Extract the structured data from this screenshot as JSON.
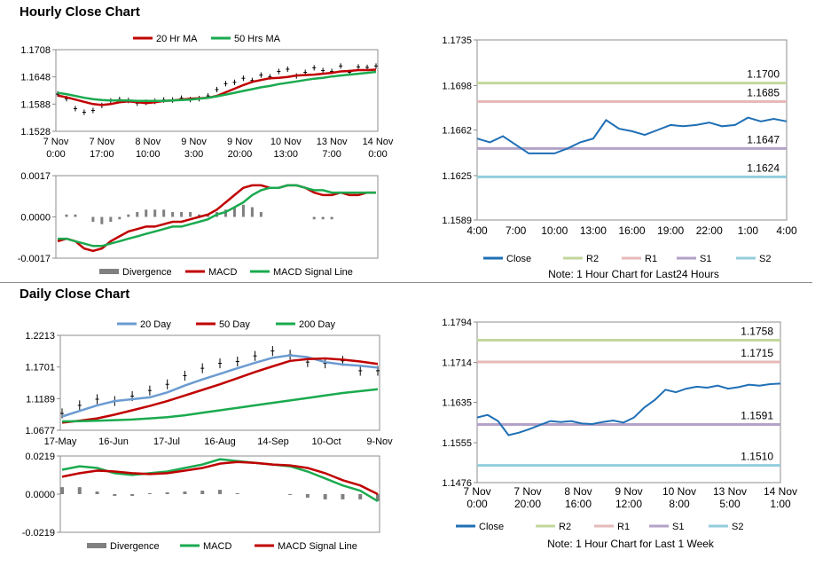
{
  "sections": {
    "hourly_title": "Hourly Close Chart",
    "daily_title": "Daily Close Chart"
  },
  "colors": {
    "red": "#c00000",
    "green": "#1aaa4f",
    "blue": "#1f6fb5",
    "lightblue": "#6b9bd1",
    "gray": "#808080",
    "r2": "#c3d69b",
    "r1": "#e6b9b8",
    "s1": "#b3a2c7",
    "s2": "#93cddd"
  },
  "chart_data": [
    {
      "id": "hourly_price",
      "type": "line",
      "legend": [
        "20 Hr MA",
        "50 Hrs MA"
      ],
      "y_ticks": [
        "1.1708",
        "1.1648",
        "1.1588",
        "1.1528"
      ],
      "ylim": [
        1.1528,
        1.1708
      ],
      "x_ticks": [
        [
          "7 Nov",
          "0:00"
        ],
        [
          "7 Nov",
          "17:00"
        ],
        [
          "8 Nov",
          "10:00"
        ],
        [
          "9 Nov",
          "3:00"
        ],
        [
          "9 Nov",
          "20:00"
        ],
        [
          "10 Nov",
          "13:00"
        ],
        [
          "13 Nov",
          "7:00"
        ],
        [
          "14 Nov",
          "0:00"
        ]
      ],
      "series": [
        {
          "name": "20 Hr MA",
          "values": [
            1.1607,
            1.1603,
            1.1598,
            1.1593,
            1.1588,
            1.1586,
            1.1588,
            1.1592,
            1.1594,
            1.1592,
            1.159,
            1.1592,
            1.1595,
            1.1596,
            1.1598,
            1.16,
            1.1601,
            1.1602,
            1.1606,
            1.1614,
            1.1622,
            1.163,
            1.1637,
            1.1641,
            1.1645,
            1.1646,
            1.1648,
            1.1651,
            1.1652,
            1.1653,
            1.1655,
            1.1657,
            1.166,
            1.1661,
            1.1663,
            1.1663,
            1.1664
          ]
        },
        {
          "name": "50 Hrs MA",
          "values": [
            1.1613,
            1.161,
            1.1606,
            1.1602,
            1.1599,
            1.1597,
            1.1596,
            1.1596,
            1.1596,
            1.1595,
            1.1595,
            1.1595,
            1.1595,
            1.1596,
            1.1597,
            1.1598,
            1.16,
            1.1602,
            1.1605,
            1.1609,
            1.1613,
            1.1617,
            1.1621,
            1.1625,
            1.1628,
            1.1632,
            1.1635,
            1.1638,
            1.1641,
            1.1644,
            1.1646,
            1.1649,
            1.1651,
            1.1653,
            1.1655,
            1.1657,
            1.1659
          ]
        }
      ],
      "close": [
        1.161,
        1.16,
        1.1578,
        1.157,
        1.1574,
        1.1585,
        1.1595,
        1.1598,
        1.1596,
        1.159,
        1.1592,
        1.1594,
        1.1597,
        1.1597,
        1.1601,
        1.1598,
        1.16,
        1.1606,
        1.162,
        1.1633,
        1.1636,
        1.1645,
        1.164,
        1.1652,
        1.1648,
        1.166,
        1.1665,
        1.165,
        1.1658,
        1.1668,
        1.1662,
        1.166,
        1.1672,
        1.1658,
        1.167,
        1.1669,
        1.1672
      ]
    },
    {
      "id": "hourly_macd",
      "type": "line",
      "legend": [
        "Divergence",
        "MACD",
        "MACD Signal Line"
      ],
      "y_ticks": [
        "0.0017",
        "0.0000",
        "-0.0017"
      ],
      "ylim": [
        -0.0017,
        0.0017
      ],
      "series": [
        {
          "name": "MACD",
          "values": [
            -0.001,
            -0.0009,
            -0.001,
            -0.0013,
            -0.0014,
            -0.0013,
            -0.001,
            -0.0008,
            -0.0006,
            -0.0005,
            -0.0004,
            -0.0004,
            -0.0003,
            -0.0002,
            -0.0002,
            -0.0001,
            0.0,
            0.0001,
            0.0003,
            0.0006,
            0.0009,
            0.0012,
            0.0013,
            0.0013,
            0.0012,
            0.0012,
            0.0013,
            0.0013,
            0.0012,
            0.001,
            0.0009,
            0.0009,
            0.001,
            0.0009,
            0.0009,
            0.001,
            0.001
          ]
        },
        {
          "name": "MACD Signal Line",
          "values": [
            -0.0009,
            -0.0009,
            -0.001,
            -0.0011,
            -0.0012,
            -0.0012,
            -0.0011,
            -0.001,
            -0.0009,
            -0.0008,
            -0.0007,
            -0.0006,
            -0.0005,
            -0.0004,
            -0.0004,
            -0.0003,
            -0.0002,
            -0.0001,
            0.0001,
            0.0002,
            0.0004,
            0.0006,
            0.0009,
            0.0011,
            0.0012,
            0.0012,
            0.0013,
            0.0013,
            0.0012,
            0.0011,
            0.0011,
            0.001,
            0.001,
            0.001,
            0.001,
            0.001,
            0.001
          ]
        }
      ],
      "divergence": [
        0.0,
        0.0001,
        0.0001,
        0.0,
        -0.0002,
        -0.0003,
        -0.0002,
        -0.0001,
        0.0001,
        0.0002,
        0.0003,
        0.0003,
        0.0003,
        0.0002,
        0.0002,
        0.0002,
        0.0001,
        0.0001,
        0.0002,
        0.0003,
        0.0004,
        0.0005,
        0.0004,
        0.0002,
        0.0,
        0.0,
        0.0,
        0.0,
        0.0,
        -0.0001,
        -0.0001,
        -0.0001,
        0.0,
        0.0,
        0.0,
        0.0,
        0.0
      ]
    },
    {
      "id": "hourly_pivot",
      "type": "line",
      "y_ticks": [
        "1.1735",
        "1.1698",
        "1.1662",
        "1.1625",
        "1.1589"
      ],
      "ylim": [
        1.1589,
        1.1735
      ],
      "x_ticks": [
        "4:00",
        "7:00",
        "10:00",
        "13:00",
        "16:00",
        "19:00",
        "22:00",
        "1:00",
        "4:00"
      ],
      "levels": [
        {
          "name": "R2",
          "value": 1.17,
          "label": "1.1700"
        },
        {
          "name": "R1",
          "value": 1.1685,
          "label": "1.1685"
        },
        {
          "name": "S1",
          "value": 1.1647,
          "label": "1.1647"
        },
        {
          "name": "S2",
          "value": 1.1624,
          "label": "1.1624"
        }
      ],
      "close": [
        1.1655,
        1.1652,
        1.1657,
        1.165,
        1.1643,
        1.1643,
        1.1643,
        1.1647,
        1.1652,
        1.1655,
        1.167,
        1.1663,
        1.1661,
        1.1658,
        1.1662,
        1.1666,
        1.1665,
        1.1666,
        1.1668,
        1.1665,
        1.1666,
        1.1672,
        1.1669,
        1.1671,
        1.1669
      ],
      "legend": [
        "Close",
        "R2",
        "R1",
        "S1",
        "S2"
      ],
      "note": "Note: 1 Hour Chart for Last24 Hours"
    },
    {
      "id": "daily_price",
      "type": "line",
      "legend": [
        "20 Day",
        "50 Day",
        "200 Day"
      ],
      "y_ticks": [
        "1.2213",
        "1.1701",
        "1.1189",
        "1.0677"
      ],
      "ylim": [
        1.0677,
        1.2213
      ],
      "x_ticks": [
        "17-May",
        "16-Jun",
        "17-Jul",
        "16-Aug",
        "14-Sep",
        "10-Oct",
        "9-Nov"
      ],
      "series": [
        {
          "name": "20 Day",
          "values": [
            1.09,
            1.099,
            1.108,
            1.115,
            1.118,
            1.121,
            1.129,
            1.14,
            1.15,
            1.159,
            1.168,
            1.177,
            1.185,
            1.189,
            1.186,
            1.178,
            1.174,
            1.172,
            1.169
          ]
        },
        {
          "name": "50 Day",
          "values": [
            1.08,
            1.083,
            1.087,
            1.093,
            1.1,
            1.107,
            1.115,
            1.124,
            1.133,
            1.142,
            1.152,
            1.162,
            1.171,
            1.18,
            1.183,
            1.184,
            1.182,
            1.179,
            1.175
          ]
        },
        {
          "name": "200 Day",
          "values": [
            1.082,
            1.0825,
            1.083,
            1.084,
            1.085,
            1.087,
            1.089,
            1.092,
            1.096,
            1.1,
            1.104,
            1.108,
            1.112,
            1.116,
            1.12,
            1.124,
            1.128,
            1.131,
            1.134
          ]
        }
      ],
      "close": [
        1.095,
        1.108,
        1.118,
        1.115,
        1.123,
        1.132,
        1.142,
        1.156,
        1.168,
        1.176,
        1.179,
        1.188,
        1.196,
        1.19,
        1.178,
        1.176,
        1.18,
        1.164,
        1.164
      ]
    },
    {
      "id": "daily_macd",
      "type": "line",
      "legend": [
        "Divergence",
        "MACD",
        "MACD Signal Line"
      ],
      "y_ticks": [
        "0.0219",
        "0.0000",
        "-0.0219"
      ],
      "ylim": [
        -0.0219,
        0.0219
      ],
      "series": [
        {
          "name": "MACD",
          "values": [
            0.014,
            0.016,
            0.015,
            0.012,
            0.011,
            0.012,
            0.013,
            0.015,
            0.017,
            0.02,
            0.019,
            0.018,
            0.017,
            0.016,
            0.013,
            0.009,
            0.005,
            0.002,
            -0.004
          ]
        },
        {
          "name": "MACD Signal Line",
          "values": [
            0.01,
            0.012,
            0.0135,
            0.013,
            0.012,
            0.0115,
            0.012,
            0.0135,
            0.015,
            0.0175,
            0.0185,
            0.018,
            0.017,
            0.0165,
            0.015,
            0.012,
            0.008,
            0.005,
            0.0
          ]
        }
      ],
      "divergence": [
        0.004,
        0.004,
        0.0015,
        -0.001,
        -0.001,
        0.0005,
        0.001,
        0.0015,
        0.002,
        0.0025,
        0.0005,
        0.0,
        0.0,
        -0.0005,
        -0.002,
        -0.003,
        -0.003,
        -0.003,
        -0.004
      ]
    },
    {
      "id": "daily_pivot",
      "type": "line",
      "y_ticks": [
        "1.1794",
        "1.1714",
        "1.1635",
        "1.1555",
        "1.1476"
      ],
      "ylim": [
        1.1476,
        1.1794
      ],
      "x_ticks": [
        [
          "7 Nov",
          "0:00"
        ],
        [
          "7 Nov",
          "20:00"
        ],
        [
          "8 Nov",
          "16:00"
        ],
        [
          "9 Nov",
          "12:00"
        ],
        [
          "10 Nov",
          "8:00"
        ],
        [
          "13 Nov",
          "5:00"
        ],
        [
          "14 Nov",
          "1:00"
        ]
      ],
      "levels": [
        {
          "name": "R2",
          "value": 1.1758,
          "label": "1.1758"
        },
        {
          "name": "R1",
          "value": 1.1715,
          "label": "1.1715"
        },
        {
          "name": "S1",
          "value": 1.1591,
          "label": "1.1591"
        },
        {
          "name": "S2",
          "value": 1.151,
          "label": "1.1510"
        }
      ],
      "close": [
        1.1605,
        1.161,
        1.1598,
        1.157,
        1.1575,
        1.1582,
        1.159,
        1.1598,
        1.1596,
        1.1598,
        1.1593,
        1.1592,
        1.1596,
        1.1599,
        1.1595,
        1.1605,
        1.1625,
        1.164,
        1.166,
        1.1655,
        1.1662,
        1.1666,
        1.1664,
        1.1668,
        1.1662,
        1.1665,
        1.167,
        1.1668,
        1.1671,
        1.1672
      ],
      "legend": [
        "Close",
        "R2",
        "R1",
        "S1",
        "S2"
      ],
      "note": "Note: 1 Hour Chart for Last 1 Week"
    }
  ]
}
